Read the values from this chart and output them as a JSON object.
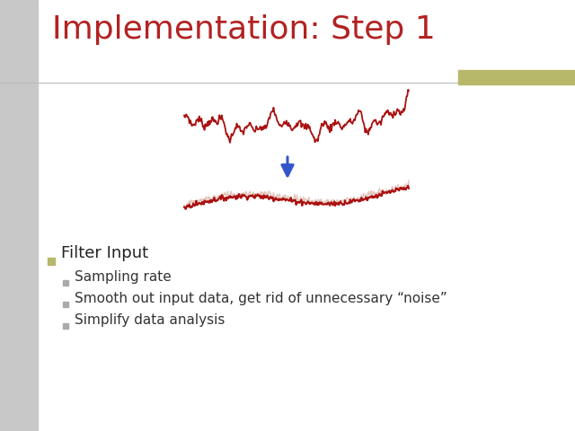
{
  "title": "Implementation: Step 1",
  "title_color": "#b22222",
  "title_fontsize": 26,
  "slide_bg": "#ffffff",
  "left_bar_color": "#c8c8c8",
  "accent_bar_color": "#b8b86a",
  "bullet_items": [
    {
      "text": "Filter Input",
      "level": 1,
      "bullet_color": "#b8b86a"
    },
    {
      "text": "Sampling rate",
      "level": 2,
      "bullet_color": "#aaaaaa"
    },
    {
      "text": "Smooth out input data, get rid of unnecessary “noise”",
      "level": 2,
      "bullet_color": "#aaaaaa"
    },
    {
      "text": "Simplify data analysis",
      "level": 2,
      "bullet_color": "#aaaaaa"
    }
  ],
  "noisy_line_color": "#aa1111",
  "smooth_line_color": "#aa1111",
  "smooth_line_color2": "#cc9988",
  "arrow_color": "#3355cc",
  "seed": 7
}
